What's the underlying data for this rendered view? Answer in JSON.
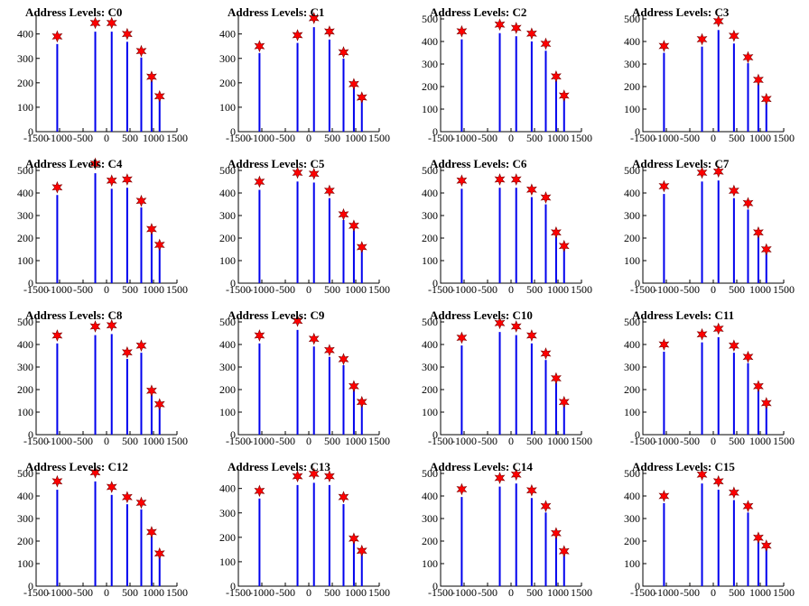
{
  "chart_data": [
    {
      "type": "bar",
      "title": "Address Levels: C0",
      "xlim": [
        -1500,
        1500
      ],
      "ylim": [
        0,
        480
      ],
      "yticks": [
        0,
        100,
        200,
        300,
        400
      ],
      "xticks": [
        -1500,
        -1000,
        -500,
        0,
        500,
        1000,
        1500
      ],
      "peaks_x": [
        -1050,
        -240,
        110,
        440,
        740,
        960,
        1130
      ],
      "peaks_y": [
        390,
        445,
        445,
        400,
        330,
        225,
        145
      ]
    },
    {
      "type": "bar",
      "title": "Address Levels: C1",
      "xlim": [
        -1500,
        1500
      ],
      "ylim": [
        0,
        480
      ],
      "yticks": [
        0,
        100,
        200,
        300,
        400
      ],
      "xticks": [
        -1500,
        -1000,
        -500,
        0,
        500,
        1000,
        1500
      ],
      "peaks_x": [
        -1050,
        -240,
        110,
        440,
        740,
        960,
        1130
      ],
      "peaks_y": [
        350,
        395,
        465,
        410,
        325,
        195,
        140
      ]
    },
    {
      "type": "bar",
      "title": "Address Levels: C2",
      "xlim": [
        -1500,
        1500
      ],
      "ylim": [
        0,
        520
      ],
      "yticks": [
        0,
        100,
        200,
        300,
        400,
        500
      ],
      "xticks": [
        -1500,
        -1000,
        -500,
        0,
        500,
        1000,
        1500
      ],
      "peaks_x": [
        -1050,
        -240,
        110,
        440,
        740,
        960,
        1130
      ],
      "peaks_y": [
        445,
        475,
        460,
        435,
        390,
        245,
        160
      ]
    },
    {
      "type": "bar",
      "title": "Address Levels: C3",
      "xlim": [
        -1500,
        1500
      ],
      "ylim": [
        0,
        520
      ],
      "yticks": [
        0,
        100,
        200,
        300,
        400,
        500
      ],
      "xticks": [
        -1500,
        -1000,
        -500,
        0,
        500,
        1000,
        1500
      ],
      "peaks_x": [
        -1050,
        -240,
        110,
        440,
        740,
        960,
        1130
      ],
      "peaks_y": [
        380,
        410,
        490,
        425,
        330,
        230,
        145
      ]
    },
    {
      "type": "bar",
      "title": "Address Levels: C4",
      "xlim": [
        -1500,
        1500
      ],
      "ylim": [
        0,
        520
      ],
      "yticks": [
        0,
        100,
        200,
        300,
        400,
        500
      ],
      "xticks": [
        -1500,
        -1000,
        -500,
        0,
        500,
        1000,
        1500
      ],
      "peaks_x": [
        -1050,
        -240,
        110,
        440,
        740,
        960,
        1130
      ],
      "peaks_y": [
        425,
        530,
        455,
        460,
        365,
        240,
        170
      ]
    },
    {
      "type": "bar",
      "title": "Address Levels: C5",
      "xlim": [
        -1500,
        1500
      ],
      "ylim": [
        0,
        520
      ],
      "yticks": [
        0,
        100,
        200,
        300,
        400,
        500
      ],
      "xticks": [
        -1500,
        -1000,
        -500,
        0,
        500,
        1000,
        1500
      ],
      "peaks_x": [
        -1050,
        -240,
        110,
        440,
        740,
        960,
        1130
      ],
      "peaks_y": [
        450,
        490,
        485,
        410,
        305,
        255,
        160
      ]
    },
    {
      "type": "bar",
      "title": "Address Levels: C6",
      "xlim": [
        -1500,
        1500
      ],
      "ylim": [
        0,
        520
      ],
      "yticks": [
        0,
        100,
        200,
        300,
        400,
        500
      ],
      "xticks": [
        -1500,
        -1000,
        -500,
        0,
        500,
        1000,
        1500
      ],
      "peaks_x": [
        -1050,
        -240,
        110,
        440,
        740,
        960,
        1130
      ],
      "peaks_y": [
        455,
        460,
        460,
        415,
        380,
        225,
        165
      ]
    },
    {
      "type": "bar",
      "title": "Address Levels: C7",
      "xlim": [
        -1500,
        1500
      ],
      "ylim": [
        0,
        520
      ],
      "yticks": [
        0,
        100,
        200,
        300,
        400,
        500
      ],
      "xticks": [
        -1500,
        -1000,
        -500,
        0,
        500,
        1000,
        1500
      ],
      "peaks_x": [
        -1050,
        -240,
        110,
        440,
        740,
        960,
        1130
      ],
      "peaks_y": [
        430,
        490,
        495,
        410,
        355,
        225,
        150
      ]
    },
    {
      "type": "bar",
      "title": "Address Levels: C8",
      "xlim": [
        -1500,
        1500
      ],
      "ylim": [
        0,
        520
      ],
      "yticks": [
        0,
        100,
        200,
        300,
        400,
        500
      ],
      "xticks": [
        -1500,
        -1000,
        -500,
        0,
        500,
        1000,
        1500
      ],
      "peaks_x": [
        -1050,
        -240,
        110,
        440,
        740,
        960,
        1130
      ],
      "peaks_y": [
        440,
        480,
        485,
        365,
        395,
        195,
        135
      ]
    },
    {
      "type": "bar",
      "title": "Address Levels: C9",
      "xlim": [
        -1500,
        1500
      ],
      "ylim": [
        0,
        520
      ],
      "yticks": [
        0,
        100,
        200,
        300,
        400,
        500
      ],
      "xticks": [
        -1500,
        -1000,
        -500,
        0,
        500,
        1000,
        1500
      ],
      "peaks_x": [
        -1050,
        -240,
        110,
        440,
        740,
        960,
        1130
      ],
      "peaks_y": [
        440,
        505,
        425,
        375,
        335,
        215,
        145
      ]
    },
    {
      "type": "bar",
      "title": "Address Levels: C10",
      "xlim": [
        -1500,
        1500
      ],
      "ylim": [
        0,
        520
      ],
      "yticks": [
        0,
        100,
        200,
        300,
        400,
        500
      ],
      "xticks": [
        -1500,
        -1000,
        -500,
        0,
        500,
        1000,
        1500
      ],
      "peaks_x": [
        -1050,
        -240,
        110,
        440,
        740,
        960,
        1130
      ],
      "peaks_y": [
        430,
        495,
        480,
        440,
        360,
        250,
        145
      ]
    },
    {
      "type": "bar",
      "title": "Address Levels: C11",
      "xlim": [
        -1500,
        1500
      ],
      "ylim": [
        0,
        520
      ],
      "yticks": [
        0,
        100,
        200,
        300,
        400,
        500
      ],
      "xticks": [
        -1500,
        -1000,
        -500,
        0,
        500,
        1000,
        1500
      ],
      "peaks_x": [
        -1050,
        -240,
        110,
        440,
        740,
        960,
        1130
      ],
      "peaks_y": [
        400,
        445,
        470,
        395,
        345,
        215,
        140
      ]
    },
    {
      "type": "bar",
      "title": "Address Levels: C12",
      "xlim": [
        -1500,
        1500
      ],
      "ylim": [
        0,
        520
      ],
      "yticks": [
        0,
        100,
        200,
        300,
        400,
        500
      ],
      "xticks": [
        -1500,
        -1000,
        -500,
        0,
        500,
        1000,
        1500
      ],
      "peaks_x": [
        -1050,
        -240,
        110,
        440,
        740,
        960,
        1130
      ],
      "peaks_y": [
        465,
        505,
        440,
        395,
        370,
        240,
        145
      ]
    },
    {
      "type": "bar",
      "title": "Address Levels: C13",
      "xlim": [
        -1500,
        1500
      ],
      "ylim": [
        0,
        480
      ],
      "yticks": [
        0,
        100,
        200,
        300,
        400
      ],
      "xticks": [
        -1500,
        -1000,
        -500,
        0,
        500,
        1000,
        1500
      ],
      "peaks_x": [
        -1050,
        -240,
        110,
        440,
        740,
        960,
        1130
      ],
      "peaks_y": [
        390,
        450,
        460,
        450,
        365,
        195,
        145
      ]
    },
    {
      "type": "bar",
      "title": "Address Levels: C14",
      "xlim": [
        -1500,
        1500
      ],
      "ylim": [
        0,
        520
      ],
      "yticks": [
        0,
        100,
        200,
        300,
        400,
        500
      ],
      "xticks": [
        -1500,
        -1000,
        -500,
        0,
        500,
        1000,
        1500
      ],
      "peaks_x": [
        -1050,
        -240,
        110,
        440,
        740,
        960,
        1130
      ],
      "peaks_y": [
        430,
        480,
        495,
        425,
        355,
        235,
        155
      ]
    },
    {
      "type": "bar",
      "title": "Address Levels: C15",
      "xlim": [
        -1500,
        1500
      ],
      "ylim": [
        0,
        520
      ],
      "yticks": [
        0,
        100,
        200,
        300,
        400,
        500
      ],
      "xticks": [
        -1500,
        -1000,
        -500,
        0,
        500,
        1000,
        1500
      ],
      "peaks_x": [
        -1050,
        -240,
        110,
        440,
        740,
        960,
        1130
      ],
      "peaks_y": [
        400,
        495,
        465,
        415,
        355,
        215,
        180
      ]
    }
  ],
  "colors": {
    "bar": "#0000ee",
    "marker": "#ff0000",
    "axis": "#000000"
  }
}
